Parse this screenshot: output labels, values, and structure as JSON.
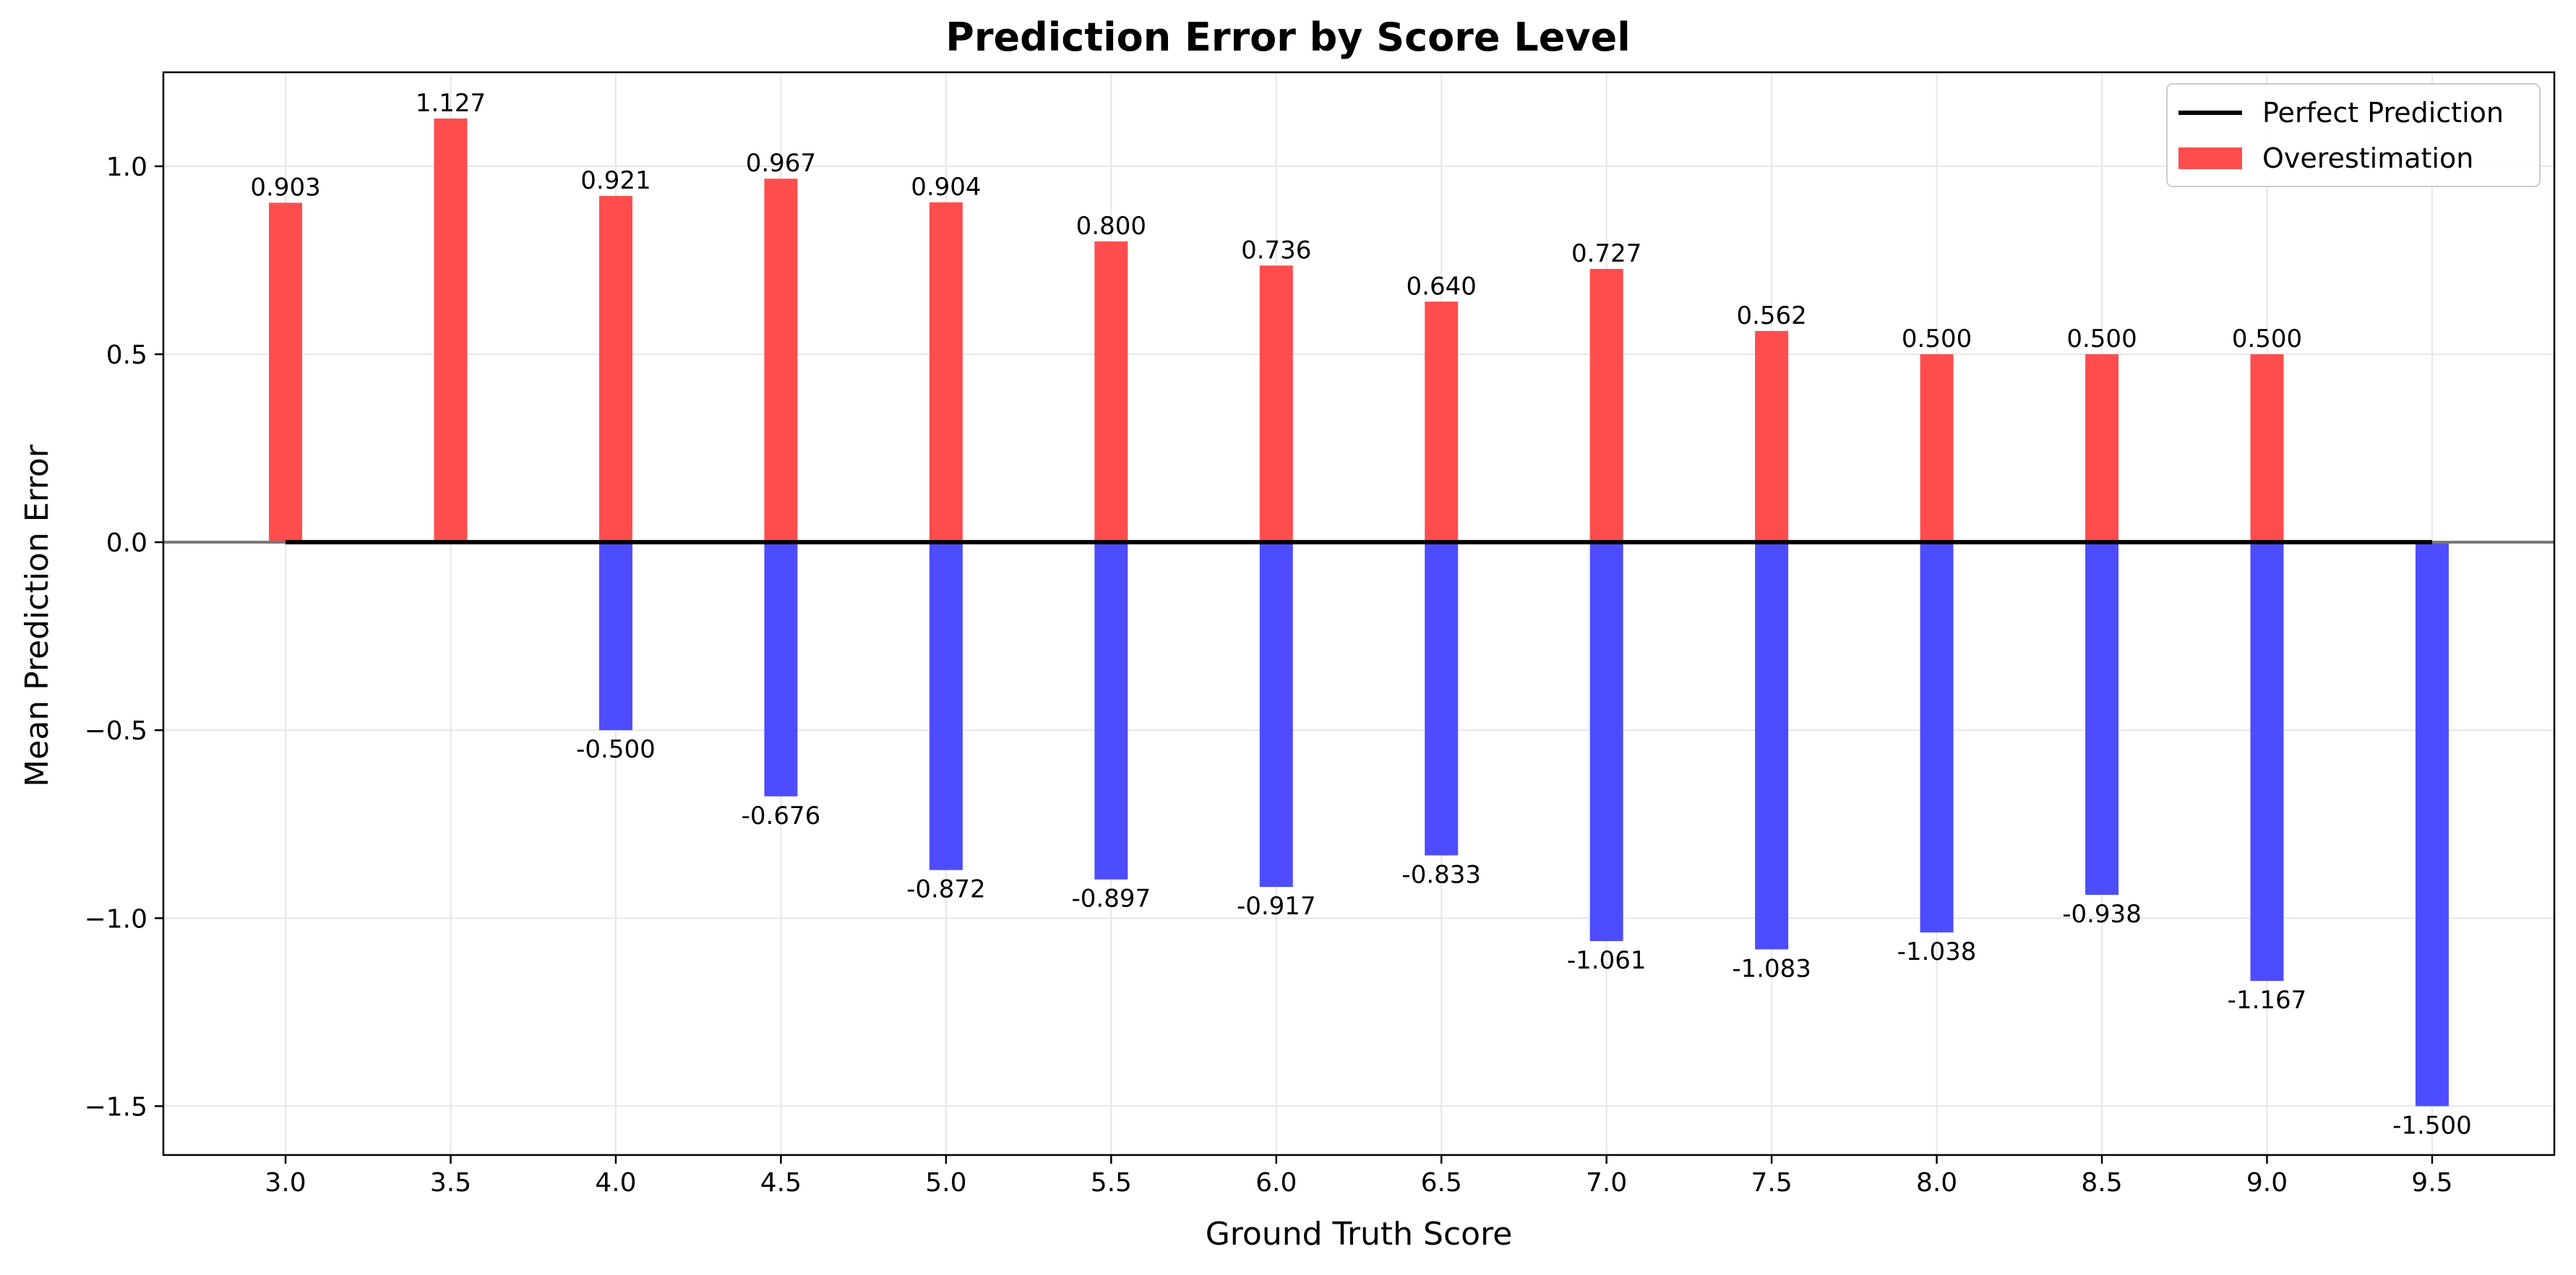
{
  "chart_data": {
    "type": "bar",
    "title": "Prediction Error by Score Level",
    "xlabel": "Ground Truth Score",
    "ylabel": "Mean Prediction Error",
    "ylim": [
      -1.63,
      1.25
    ],
    "xlim": [
      2.63,
      9.87
    ],
    "yticks": [
      -1.5,
      -1.0,
      -0.5,
      0.0,
      0.5,
      1.0
    ],
    "ytick_labels": [
      "−1.5",
      "−1.0",
      "−0.5",
      "0.0",
      "0.5",
      "1.0"
    ],
    "categories": [
      "3.0",
      "3.5",
      "4.0",
      "4.5",
      "5.0",
      "5.5",
      "6.0",
      "6.5",
      "7.0",
      "7.5",
      "8.0",
      "8.5",
      "9.0",
      "9.5"
    ],
    "x": [
      3.0,
      3.5,
      4.0,
      4.5,
      5.0,
      5.5,
      6.0,
      6.5,
      7.0,
      7.5,
      8.0,
      8.5,
      9.0,
      9.5
    ],
    "grid": true,
    "legend_position": "top-right",
    "reference_line": {
      "name": "Perfect Prediction",
      "y": 0.0,
      "x_range": [
        3.0,
        9.5
      ],
      "color": "#000000"
    },
    "series": [
      {
        "name": "Overestimation",
        "color": "#ff4d4d",
        "values": [
          0.903,
          1.127,
          0.921,
          0.967,
          0.904,
          0.8,
          0.736,
          0.64,
          0.727,
          0.562,
          0.5,
          0.5,
          0.5,
          null
        ],
        "labels": [
          "0.903",
          "1.127",
          "0.921",
          "0.967",
          "0.904",
          "0.800",
          "0.736",
          "0.640",
          "0.727",
          "0.562",
          "0.500",
          "0.500",
          "0.500",
          ""
        ]
      },
      {
        "name": "",
        "color": "#4d4dff",
        "values": [
          null,
          null,
          -0.5,
          -0.676,
          -0.872,
          -0.897,
          -0.917,
          -0.833,
          -1.061,
          -1.083,
          -1.038,
          -0.938,
          -1.167,
          -1.5
        ],
        "labels": [
          "",
          "",
          "-0.500",
          "-0.676",
          "-0.872",
          "-0.897",
          "-0.917",
          "-0.833",
          "-1.061",
          "-1.083",
          "-1.038",
          "-0.938",
          "-1.167",
          "-1.500"
        ]
      }
    ]
  }
}
